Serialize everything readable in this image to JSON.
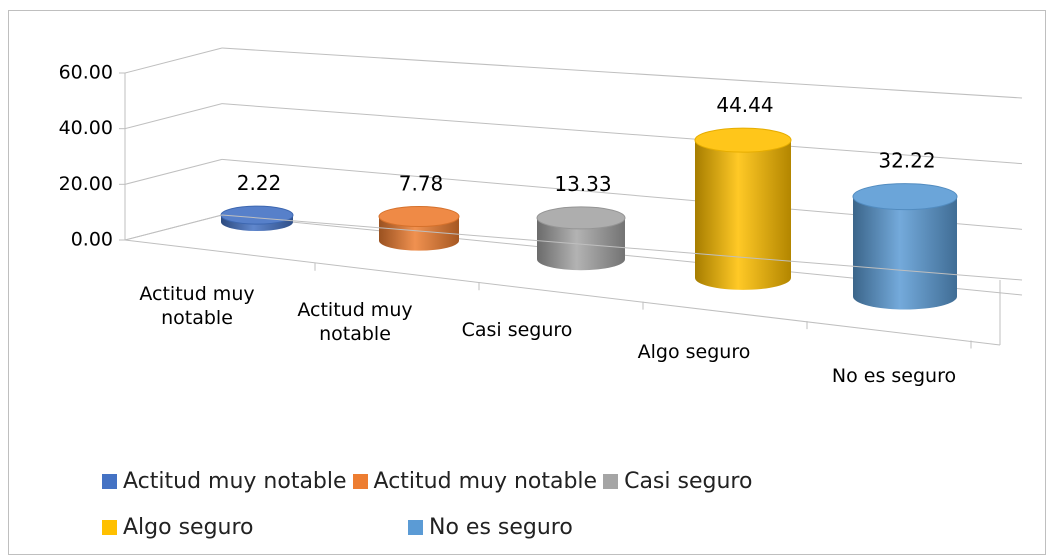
{
  "chart_data": {
    "type": "bar3d",
    "categories": [
      "Actitud muy notable",
      "Actitud muy notable",
      "Casi seguro",
      "Algo seguro",
      "No es seguro"
    ],
    "values": [
      2.22,
      7.78,
      13.33,
      44.44,
      32.22
    ],
    "colors": [
      "#4472c4",
      "#ed7d31",
      "#a5a5a5",
      "#ffc000",
      "#5b9bd5"
    ],
    "ylim": [
      0,
      60
    ],
    "yticks": [
      {
        "value": 0,
        "label": "0.00"
      },
      {
        "value": 20,
        "label": "20.00"
      },
      {
        "value": 40,
        "label": "40.00"
      },
      {
        "value": 60,
        "label": "60.00"
      }
    ],
    "grid": true,
    "legend": "bottom"
  }
}
